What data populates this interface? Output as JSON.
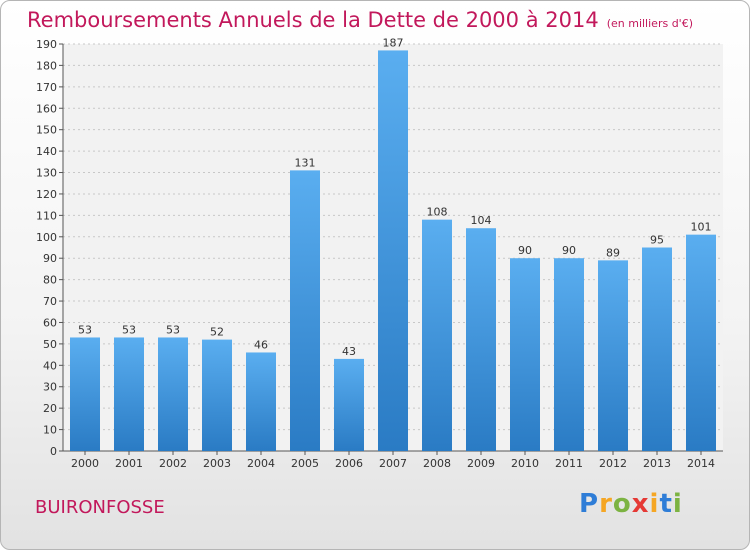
{
  "chart_data": {
    "type": "bar",
    "title": "Remboursements Annuels de la Dette de 2000 à 2014",
    "subtitle": "(en milliers d'€)",
    "categories": [
      "2000",
      "2001",
      "2002",
      "2003",
      "2004",
      "2005",
      "2006",
      "2007",
      "2008",
      "2009",
      "2010",
      "2011",
      "2012",
      "2013",
      "2014"
    ],
    "values": [
      53,
      53,
      53,
      52,
      46,
      131,
      43,
      187,
      108,
      104,
      90,
      90,
      89,
      95,
      101
    ],
    "ylim": [
      0,
      190
    ],
    "yticks": [
      0,
      10,
      20,
      30,
      40,
      50,
      60,
      70,
      80,
      90,
      100,
      110,
      120,
      130,
      140,
      150,
      160,
      170,
      180,
      190
    ],
    "grid": true,
    "bar_color": "#4fa3e6"
  },
  "commune": "BUIRONFOSSE",
  "logo": {
    "letters": [
      "P",
      "r",
      "o",
      "x",
      "i",
      "t",
      "i"
    ],
    "colors": [
      "#2e7dd7",
      "#f5a623",
      "#7cb342",
      "#e53935",
      "#f5a623",
      "#2e7dd7",
      "#7cb342"
    ]
  }
}
